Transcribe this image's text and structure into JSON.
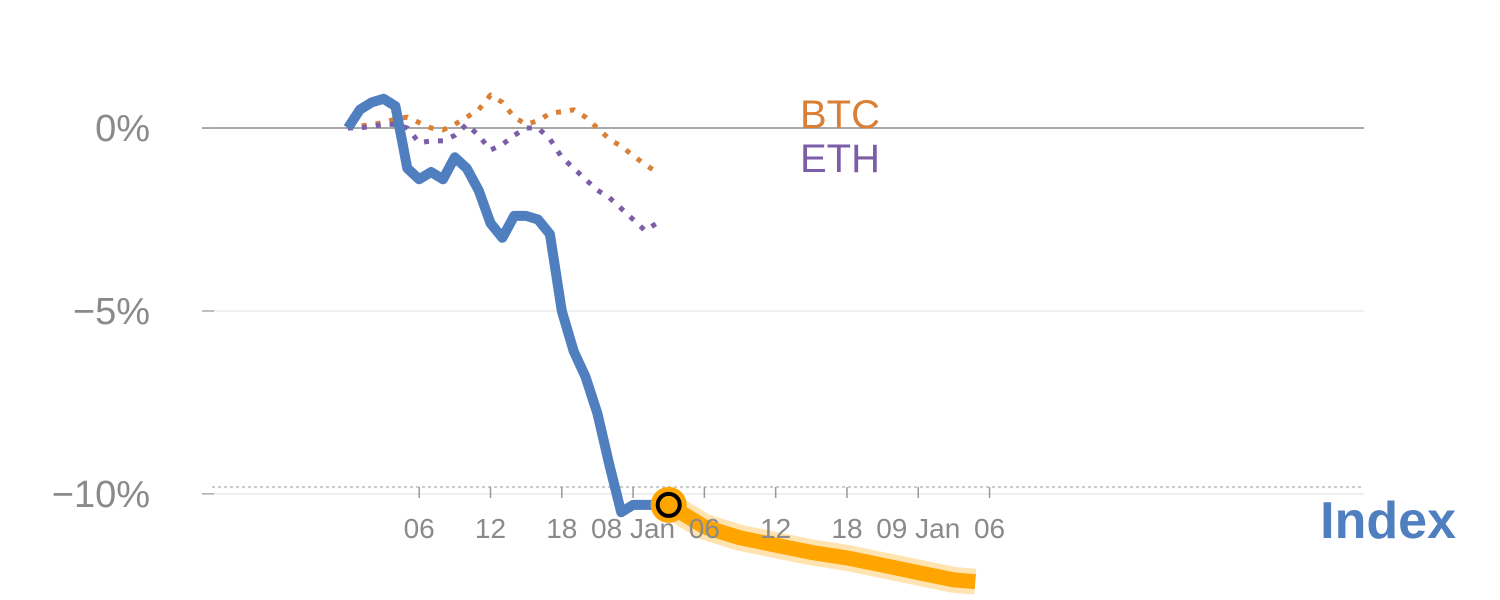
{
  "chart_data": {
    "type": "line",
    "title": "",
    "xlabel": "",
    "ylabel": "",
    "ylim": [
      -12.9,
      3.5
    ],
    "xlim": [
      -1.22,
      4.04
    ],
    "y_ticks": [
      {
        "value": 0,
        "label": "0%"
      },
      {
        "value": -5,
        "label": "−5%"
      },
      {
        "value": -10,
        "label": "−10%"
      }
    ],
    "x_ticks": [
      {
        "value": 0.25,
        "label": "06"
      },
      {
        "value": 0.5,
        "label": "12"
      },
      {
        "value": 0.75,
        "label": "18"
      },
      {
        "value": 1.0,
        "label": "08 Jan"
      },
      {
        "value": 1.25,
        "label": "06"
      },
      {
        "value": 1.5,
        "label": "12"
      },
      {
        "value": 1.75,
        "label": "18"
      },
      {
        "value": 2.0,
        "label": "09 Jan"
      },
      {
        "value": 2.25,
        "label": "06"
      }
    ],
    "grid": "horizontal",
    "series": [
      {
        "name": "BTC",
        "style": "dotted",
        "color": "#d98036",
        "x": [
          0.0,
          0.0417,
          0.0833,
          0.125,
          0.1667,
          0.2083,
          0.25,
          0.2917,
          0.3333,
          0.375,
          0.4167,
          0.4583,
          0.5,
          0.5417,
          0.5833,
          0.625,
          0.6667,
          0.7083,
          0.75,
          0.7917,
          0.8333,
          0.875,
          0.9167,
          0.9583,
          1.0,
          1.0417,
          1.0833
        ],
        "values": [
          0.0,
          0.05,
          0.1,
          0.15,
          0.25,
          0.3,
          0.15,
          0.0,
          -0.05,
          0.1,
          0.3,
          0.5,
          0.9,
          0.7,
          0.3,
          0.1,
          0.2,
          0.4,
          0.45,
          0.5,
          0.3,
          0.0,
          -0.3,
          -0.5,
          -0.75,
          -1.0,
          -1.2
        ]
      },
      {
        "name": "ETH",
        "style": "dotted",
        "color": "#7b5ea7",
        "x": [
          0.0,
          0.0417,
          0.0833,
          0.125,
          0.1667,
          0.2083,
          0.25,
          0.2917,
          0.3333,
          0.375,
          0.4167,
          0.4583,
          0.5,
          0.5417,
          0.5833,
          0.625,
          0.6667,
          0.7083,
          0.75,
          0.7917,
          0.8333,
          0.875,
          0.9167,
          0.9583,
          1.0,
          1.0417,
          1.0833
        ],
        "values": [
          0.0,
          0.0,
          0.05,
          0.1,
          0.1,
          0.0,
          -0.4,
          -0.35,
          -0.35,
          -0.2,
          0.1,
          -0.2,
          -0.6,
          -0.45,
          -0.2,
          0.0,
          0.0,
          -0.3,
          -0.8,
          -1.1,
          -1.4,
          -1.7,
          -1.9,
          -2.2,
          -2.5,
          -2.8,
          -2.6
        ]
      },
      {
        "name": "Index",
        "style": "solid",
        "color": "#4f7fbf",
        "x": [
          0.0,
          0.0417,
          0.0833,
          0.125,
          0.1667,
          0.2083,
          0.25,
          0.2917,
          0.3333,
          0.375,
          0.4167,
          0.4583,
          0.5,
          0.5417,
          0.5833,
          0.625,
          0.6667,
          0.7083,
          0.75,
          0.7917,
          0.8333,
          0.875,
          0.9167,
          0.9583,
          1.0,
          1.0417,
          1.0833
        ],
        "values": [
          0.0,
          0.5,
          0.7,
          0.8,
          0.6,
          -1.1,
          -1.4,
          -1.2,
          -1.4,
          -0.8,
          -1.1,
          -1.7,
          -2.6,
          -3.0,
          -2.4,
          -2.4,
          -2.5,
          -2.9,
          -5.0,
          -6.1,
          -6.8,
          -7.8,
          -9.2,
          -10.5,
          -10.3,
          -10.3,
          -10.3
        ]
      },
      {
        "name": "",
        "style": "forecast",
        "color": "#ffa500",
        "x": [
          1.125,
          1.25,
          1.375,
          1.5,
          1.625,
          1.75,
          1.875,
          2.0,
          2.125,
          2.2
        ],
        "values": [
          -10.3,
          -10.9,
          -11.2,
          -11.4,
          -11.6,
          -11.75,
          -11.95,
          -12.15,
          -12.35,
          -12.4
        ]
      }
    ],
    "marker": {
      "x": 1.125,
      "y": -10.3,
      "fill": "#ffa500",
      "stroke": "#000000"
    },
    "series_labels": [
      {
        "text": "BTC",
        "color": "#d98036"
      },
      {
        "text": "ETH",
        "color": "#7b5ea7"
      }
    ],
    "corner_label": {
      "text": "Index",
      "color": "#4f7fbf"
    }
  }
}
